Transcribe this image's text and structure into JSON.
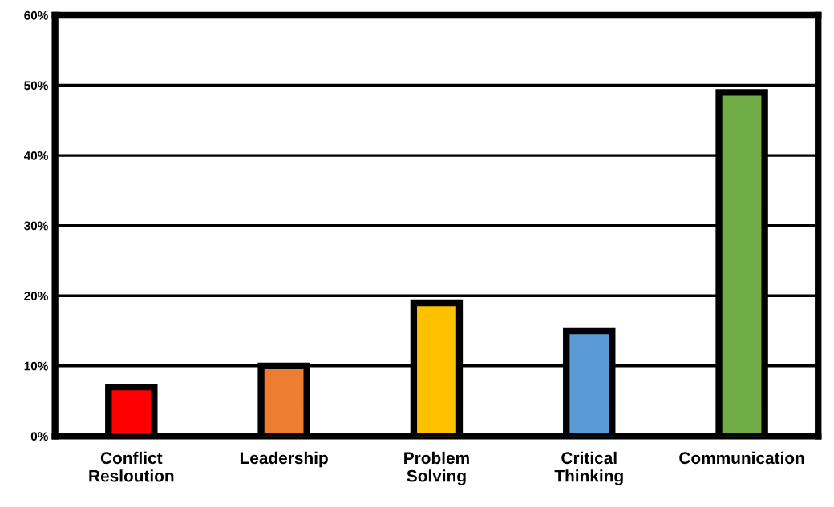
{
  "chart_data": {
    "type": "bar",
    "categories": [
      "Conflict\nResloution",
      "Leadership",
      "Problem\nSolving",
      "Critical\nThinking",
      "Communication"
    ],
    "values": [
      7,
      10,
      19,
      15,
      49
    ],
    "colors": [
      "#ff0000",
      "#ed7d31",
      "#ffc000",
      "#5b9bd5",
      "#70ad47"
    ],
    "ylim": [
      0,
      60
    ],
    "yticks": [
      {
        "value": 0,
        "label": "0%"
      },
      {
        "value": 10,
        "label": "10%"
      },
      {
        "value": 20,
        "label": "20%"
      },
      {
        "value": 30,
        "label": "30%"
      },
      {
        "value": 40,
        "label": "40%"
      },
      {
        "value": 50,
        "label": "50%"
      },
      {
        "value": 60,
        "label": "60%"
      }
    ],
    "grid": "y",
    "legend": false
  }
}
